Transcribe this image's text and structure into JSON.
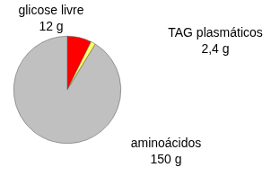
{
  "chart_data": {
    "type": "pie",
    "categories": [
      "glicose livre",
      "TAG plasmáticos",
      "aminoácidos"
    ],
    "values": [
      12,
      2.4,
      150
    ],
    "value_labels": [
      "12 g",
      "2,4 g",
      "150 g"
    ],
    "colors": [
      "#ff0000",
      "#ffff66",
      "#c0c0c0"
    ],
    "data_labels": true
  }
}
